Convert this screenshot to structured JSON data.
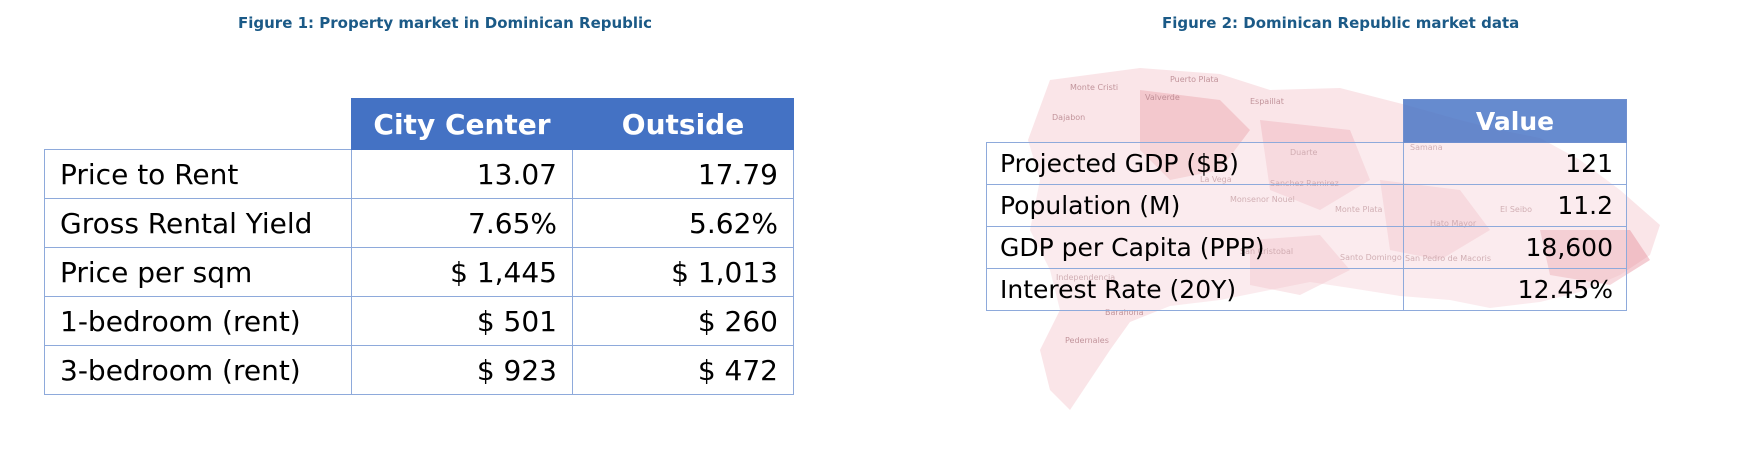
{
  "figure1": {
    "title": "Figure 1: Property market in Dominican Republic",
    "headers": [
      "City Center",
      "Outside"
    ],
    "rows": [
      {
        "label": "Price to Rent",
        "city_center": "13.07",
        "outside": "17.79"
      },
      {
        "label": "Gross Rental Yield",
        "city_center": "7.65%",
        "outside": "5.62%"
      },
      {
        "label": "Price per sqm",
        "city_center": "$ 1,445",
        "outside": "$ 1,013"
      },
      {
        "label": "1-bedroom (rent)",
        "city_center": "$ 501",
        "outside": "$ 260"
      },
      {
        "label": "3-bedroom (rent)",
        "city_center": "$ 923",
        "outside": "$ 472"
      }
    ]
  },
  "figure2": {
    "title": "Figure 2: Dominican Republic market data",
    "header": "Value",
    "rows": [
      {
        "label": "Projected GDP ($B)",
        "value": "121"
      },
      {
        "label": "Population (M)",
        "value": "11.2"
      },
      {
        "label": "GDP per Capita (PPP)",
        "value": "18,600"
      },
      {
        "label": "Interest Rate (20Y)",
        "value": "12.45%"
      }
    ],
    "map_labels": [
      "Monte Cristi",
      "Puerto Plata",
      "Valverde",
      "Espaillat",
      "Dajabon",
      "Samana",
      "Duarte",
      "La Vega",
      "Sanchez Ramirez",
      "Monsenor Nouel",
      "Monte Plata",
      "Hato Mayor",
      "El Seibo",
      "San Cristobal",
      "Santo Domingo",
      "San Pedro de Macoris",
      "Independencia",
      "Barahona",
      "Pedernales"
    ]
  },
  "colors": {
    "title_text": "#1b5a87",
    "header_fill": "#4472c4",
    "grid_line": "#8eaadb",
    "map_fill": "#f2c4cb"
  }
}
